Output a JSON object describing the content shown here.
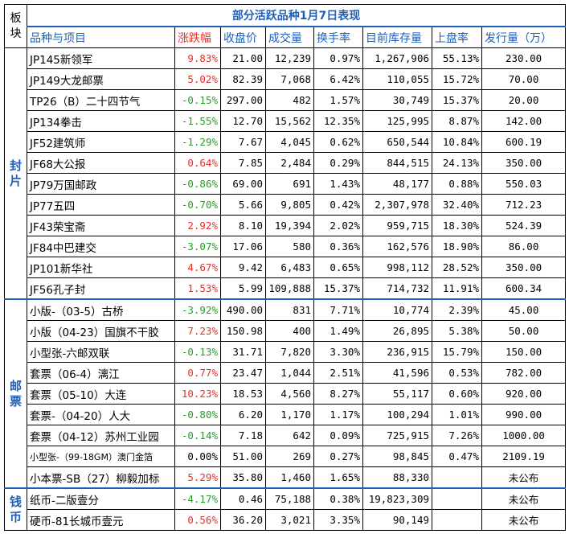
{
  "table": {
    "title": "部分活跃品种1月7日表现",
    "block_header": "板块",
    "headers": [
      "品种与项目",
      "涨跌幅",
      "收盘价",
      "成交量",
      "换手率",
      "目前库存量",
      "上盘率",
      "发行量（万）"
    ],
    "sections": [
      {
        "name": "封片",
        "rows": [
          {
            "name": "JP145新领军",
            "change": "9.83%",
            "dir": "up",
            "close": "21.00",
            "volume": "12,239",
            "turnover": "0.97%",
            "stock": "1,267,906",
            "ratio": "55.13%",
            "issue": "230.00"
          },
          {
            "name": "JP149大龙邮票",
            "change": "5.02%",
            "dir": "up",
            "close": "82.39",
            "volume": "7,068",
            "turnover": "6.42%",
            "stock": "110,055",
            "ratio": "15.72%",
            "issue": "70.00"
          },
          {
            "name": "TP26（B）二十四节气",
            "change": "-0.15%",
            "dir": "down",
            "close": "297.00",
            "volume": "482",
            "turnover": "1.57%",
            "stock": "30,749",
            "ratio": "15.37%",
            "issue": "20.00"
          },
          {
            "name": "JP134拳击",
            "change": "-1.55%",
            "dir": "down",
            "close": "12.70",
            "volume": "15,562",
            "turnover": "12.35%",
            "stock": "125,995",
            "ratio": "8.87%",
            "issue": "142.00"
          },
          {
            "name": "JF52建筑师",
            "change": "-1.29%",
            "dir": "down",
            "close": "7.67",
            "volume": "4,045",
            "turnover": "0.62%",
            "stock": "650,544",
            "ratio": "10.84%",
            "issue": "600.19"
          },
          {
            "name": "JF68大公报",
            "change": "0.64%",
            "dir": "up",
            "close": "7.85",
            "volume": "2,484",
            "turnover": "0.29%",
            "stock": "844,515",
            "ratio": "24.13%",
            "issue": "350.00"
          },
          {
            "name": "JP79万国邮政",
            "change": "-0.86%",
            "dir": "down",
            "close": "69.00",
            "volume": "691",
            "turnover": "1.43%",
            "stock": "48,177",
            "ratio": "0.88%",
            "issue": "550.03"
          },
          {
            "name": "JP77五四",
            "change": "-0.70%",
            "dir": "down",
            "close": "5.66",
            "volume": "9,805",
            "turnover": "0.42%",
            "stock": "2,307,978",
            "ratio": "32.40%",
            "issue": "712.23"
          },
          {
            "name": "JF43荣宝斋",
            "change": "2.92%",
            "dir": "up",
            "close": "8.10",
            "volume": "19,394",
            "turnover": "2.02%",
            "stock": "959,715",
            "ratio": "18.30%",
            "issue": "524.39"
          },
          {
            "name": "JF84中巴建交",
            "change": "-3.07%",
            "dir": "down",
            "close": "17.06",
            "volume": "580",
            "turnover": "0.36%",
            "stock": "162,576",
            "ratio": "18.90%",
            "issue": "86.00"
          },
          {
            "name": "JP101新华社",
            "change": "4.67%",
            "dir": "up",
            "close": "9.42",
            "volume": "6,483",
            "turnover": "0.65%",
            "stock": "998,112",
            "ratio": "28.52%",
            "issue": "350.00"
          },
          {
            "name": "JF56孔子封",
            "change": "1.53%",
            "dir": "up",
            "close": "5.99",
            "volume": "109,888",
            "turnover": "15.37%",
            "stock": "714,732",
            "ratio": "11.91%",
            "issue": "600.34"
          }
        ]
      },
      {
        "name": "邮票",
        "rows": [
          {
            "name": "小版-（03-5）古桥",
            "change": "-3.92%",
            "dir": "down",
            "close": "490.00",
            "volume": "831",
            "turnover": "7.71%",
            "stock": "10,774",
            "ratio": "2.39%",
            "issue": "45.00"
          },
          {
            "name": "小版（04-23）国旗不干胶",
            "change": "7.23%",
            "dir": "up",
            "close": "150.98",
            "volume": "400",
            "turnover": "1.49%",
            "stock": "26,895",
            "ratio": "5.38%",
            "issue": "50.00"
          },
          {
            "name": "小型张-六邮双联",
            "change": "-0.13%",
            "dir": "down",
            "close": "31.71",
            "volume": "7,820",
            "turnover": "3.30%",
            "stock": "236,915",
            "ratio": "15.79%",
            "issue": "150.00"
          },
          {
            "name": "套票（06-4）漓江",
            "change": "0.77%",
            "dir": "up",
            "close": "23.47",
            "volume": "1,044",
            "turnover": "2.51%",
            "stock": "41,596",
            "ratio": "0.53%",
            "issue": "782.00"
          },
          {
            "name": "套票（05-10）大连",
            "change": "10.23%",
            "dir": "up",
            "close": "18.53",
            "volume": "4,560",
            "turnover": "8.27%",
            "stock": "55,117",
            "ratio": "0.60%",
            "issue": "920.00"
          },
          {
            "name": "套票-（04-20）人大",
            "change": "-0.80%",
            "dir": "down",
            "close": "6.20",
            "volume": "1,170",
            "turnover": "1.17%",
            "stock": "100,294",
            "ratio": "1.01%",
            "issue": "990.00"
          },
          {
            "name": "套票（04-12）苏州工业园",
            "change": "-0.14%",
            "dir": "down",
            "close": "7.18",
            "volume": "642",
            "turnover": "0.09%",
            "stock": "725,915",
            "ratio": "7.26%",
            "issue": "1000.00"
          },
          {
            "name": "小型张-（99-18GM）澳门金箔",
            "change": "0.00%",
            "dir": "flat",
            "close": "51.00",
            "volume": "269",
            "turnover": "0.27%",
            "stock": "98,845",
            "ratio": "0.47%",
            "issue": "2109.19",
            "small": true
          },
          {
            "name": "小本票-SB（27）柳毅加标",
            "change": "5.29%",
            "dir": "up",
            "close": "35.80",
            "volume": "1,460",
            "turnover": "1.65%",
            "stock": "88,330",
            "ratio": "",
            "issue": "未公布"
          }
        ]
      },
      {
        "name": "钱币",
        "rows": [
          {
            "name": "纸币-二版壹分",
            "change": "-4.17%",
            "dir": "down",
            "close": "0.46",
            "volume": "75,188",
            "turnover": "0.38%",
            "stock": "19,823,309",
            "ratio": "",
            "issue": "未公布"
          },
          {
            "name": "硬币-81长城币壹元",
            "change": "0.56%",
            "dir": "up",
            "close": "36.20",
            "volume": "3,021",
            "turnover": "3.35%",
            "stock": "90,149",
            "ratio": "",
            "issue": "未公布"
          }
        ]
      }
    ]
  }
}
